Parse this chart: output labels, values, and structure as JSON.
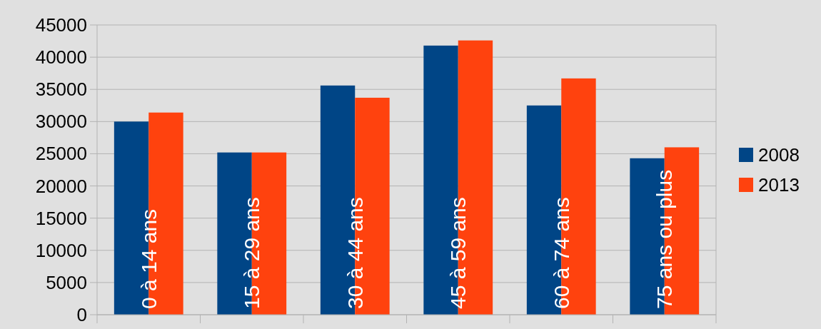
{
  "chart_data": {
    "type": "bar",
    "categories": [
      "0 à 14 ans",
      "15 à 29 ans",
      "30 à 44 ans",
      "45 à 59 ans",
      "60 à 74 ans",
      "75 ans ou plus"
    ],
    "series": [
      {
        "name": "2008",
        "color": "#004586",
        "values": [
          30000,
          25200,
          35600,
          41800,
          32500,
          24300
        ]
      },
      {
        "name": "2013",
        "color": "#ff420e",
        "values": [
          31400,
          25200,
          33700,
          42600,
          36700,
          26000
        ]
      }
    ],
    "ylim": [
      0,
      45000
    ],
    "yticks": [
      0,
      5000,
      10000,
      15000,
      20000,
      25000,
      30000,
      35000,
      40000,
      45000
    ],
    "grid": "y",
    "legend": "right"
  }
}
